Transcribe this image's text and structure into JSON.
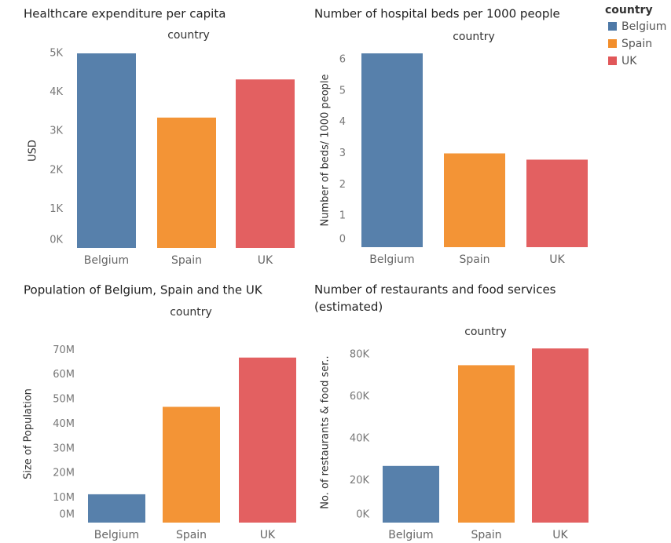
{
  "chart_data": [
    {
      "type": "bar",
      "title": "Healthcare expenditure per capita",
      "column_header": "country",
      "y_label": "USD",
      "categories": [
        "Belgium",
        "Spain",
        "UK"
      ],
      "values": [
        5000,
        3350,
        4330
      ],
      "ylim": [
        0,
        5000
      ],
      "yticks": [
        {
          "value": 0,
          "label": "0K"
        },
        {
          "value": 1000,
          "label": "1K"
        },
        {
          "value": 2000,
          "label": "2K"
        },
        {
          "value": 3000,
          "label": "3K"
        },
        {
          "value": 4000,
          "label": "4K"
        },
        {
          "value": 5000,
          "label": "5K"
        }
      ]
    },
    {
      "type": "bar",
      "title": "Number of hospital beds per 1000 people",
      "column_header": "country",
      "y_label": "Number of beds/ 1000 people",
      "categories": [
        "Belgium",
        "Spain",
        "UK"
      ],
      "values": [
        6.2,
        3.0,
        2.8
      ],
      "ylim": [
        0,
        6.2
      ],
      "yticks": [
        0,
        1,
        2,
        3,
        4,
        5,
        6
      ]
    },
    {
      "type": "bar",
      "title": "Population of Belgium, Spain and the UK",
      "column_header": "country",
      "y_label": "Size of Population",
      "categories": [
        "Belgium",
        "Spain",
        "UK"
      ],
      "values": [
        11500000,
        47000000,
        67000000
      ],
      "ylim": [
        0,
        72000000
      ],
      "yticks": [
        {
          "value": 0,
          "label": "0M"
        },
        {
          "value": 10000000,
          "label": "10M"
        },
        {
          "value": 20000000,
          "label": "20M"
        },
        {
          "value": 30000000,
          "label": "30M"
        },
        {
          "value": 40000000,
          "label": "40M"
        },
        {
          "value": 50000000,
          "label": "50M"
        },
        {
          "value": 60000000,
          "label": "60M"
        },
        {
          "value": 70000000,
          "label": "70M"
        }
      ]
    },
    {
      "type": "bar",
      "title": "Number of restaurants and food services (estimated)",
      "column_header": "country",
      "y_label": "No. of restaurants & food ser..",
      "categories": [
        "Belgium",
        "Spain",
        "UK"
      ],
      "values": [
        27000,
        75000,
        83000
      ],
      "ylim": [
        0,
        86000
      ],
      "yticks": [
        {
          "value": 0,
          "label": "0K"
        },
        {
          "value": 20000,
          "label": "20K"
        },
        {
          "value": 40000,
          "label": "40K"
        },
        {
          "value": 60000,
          "label": "60K"
        },
        {
          "value": 80000,
          "label": "80K"
        }
      ]
    }
  ],
  "legend": {
    "title": "country",
    "items": [
      "Belgium",
      "Spain",
      "UK"
    ],
    "colors": [
      "#4e79a7",
      "#f28e2b",
      "#e15759"
    ]
  }
}
